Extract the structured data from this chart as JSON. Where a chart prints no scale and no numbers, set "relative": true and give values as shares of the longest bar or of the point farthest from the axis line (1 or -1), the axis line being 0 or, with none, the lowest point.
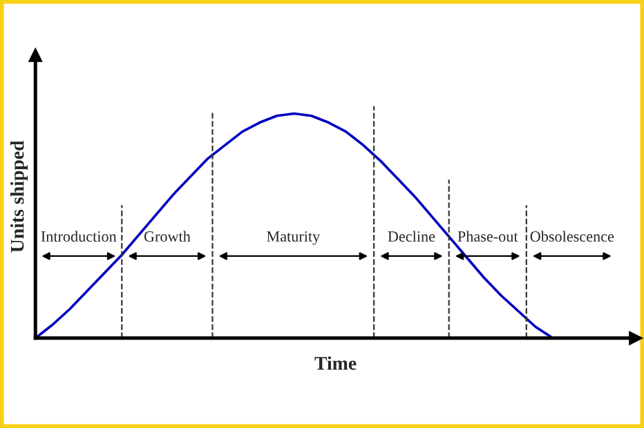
{
  "chart_data": {
    "type": "line",
    "relative": true,
    "xlabel": "Time",
    "ylabel": "Units shipped",
    "categories": [
      null,
      null,
      null,
      null,
      null,
      null,
      null,
      null,
      null,
      null,
      null,
      null,
      null,
      null,
      null,
      null,
      null,
      null,
      null,
      null,
      null,
      null,
      null,
      null,
      null,
      null,
      null,
      null,
      null,
      null,
      null
    ],
    "series": [
      {
        "color": "#0000c0",
        "values": [
          0,
          0.06,
          0.13,
          0.21,
          0.29,
          0.37,
          0.46,
          0.55,
          0.64,
          0.72,
          0.8,
          0.86,
          0.92,
          0.96,
          0.99,
          1.0,
          0.99,
          0.96,
          0.92,
          0.86,
          0.79,
          0.71,
          0.63,
          0.54,
          0.45,
          0.36,
          0.27,
          0.19,
          0.12,
          0.05,
          0
        ]
      }
    ],
    "annotations": [
      "Introduction",
      "Growth",
      "Maturity",
      "Decline",
      "Phase-out",
      "Obsolescence"
    ],
    "legend": false,
    "marker": "none",
    "line_style": "solid"
  }
}
